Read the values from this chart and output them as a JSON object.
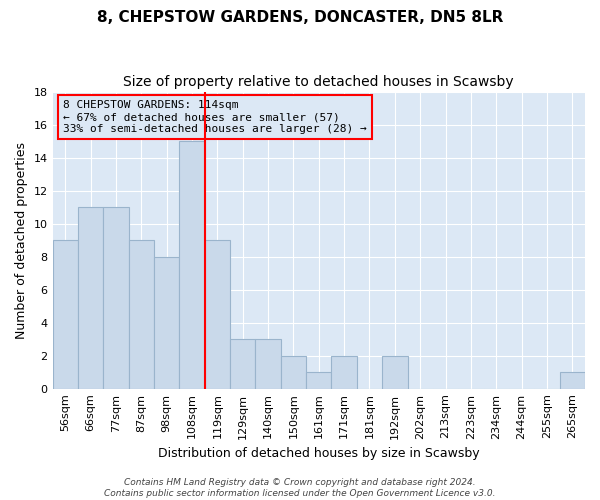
{
  "title": "8, CHEPSTOW GARDENS, DONCASTER, DN5 8LR",
  "subtitle": "Size of property relative to detached houses in Scawsby",
  "xlabel": "Distribution of detached houses by size in Scawsby",
  "ylabel": "Number of detached properties",
  "bar_color": "#c9d9ea",
  "bar_edgecolor": "#9ab4cc",
  "plot_bg_color": "#dce8f5",
  "fig_bg_color": "#ffffff",
  "bin_labels": [
    "56sqm",
    "66sqm",
    "77sqm",
    "87sqm",
    "98sqm",
    "108sqm",
    "119sqm",
    "129sqm",
    "140sqm",
    "150sqm",
    "161sqm",
    "171sqm",
    "181sqm",
    "192sqm",
    "202sqm",
    "213sqm",
    "223sqm",
    "234sqm",
    "244sqm",
    "255sqm",
    "265sqm"
  ],
  "bar_values": [
    9,
    11,
    11,
    9,
    8,
    15,
    9,
    3,
    3,
    2,
    1,
    2,
    0,
    2,
    0,
    0,
    0,
    0,
    0,
    0,
    1
  ],
  "ylim": [
    0,
    18
  ],
  "yticks": [
    0,
    2,
    4,
    6,
    8,
    10,
    12,
    14,
    16,
    18
  ],
  "red_line_x": 6,
  "annotation_text_line1": "8 CHEPSTOW GARDENS: 114sqm",
  "annotation_text_line2": "← 67% of detached houses are smaller (57)",
  "annotation_text_line3": "33% of semi-detached houses are larger (28) →",
  "footer_text": "Contains HM Land Registry data © Crown copyright and database right 2024.\nContains public sector information licensed under the Open Government Licence v3.0.",
  "grid_color": "#ffffff",
  "title_fontsize": 11,
  "subtitle_fontsize": 10,
  "annotation_fontsize": 8,
  "axis_label_fontsize": 9,
  "ylabel_fontsize": 9,
  "tick_fontsize": 8,
  "footer_fontsize": 6.5
}
